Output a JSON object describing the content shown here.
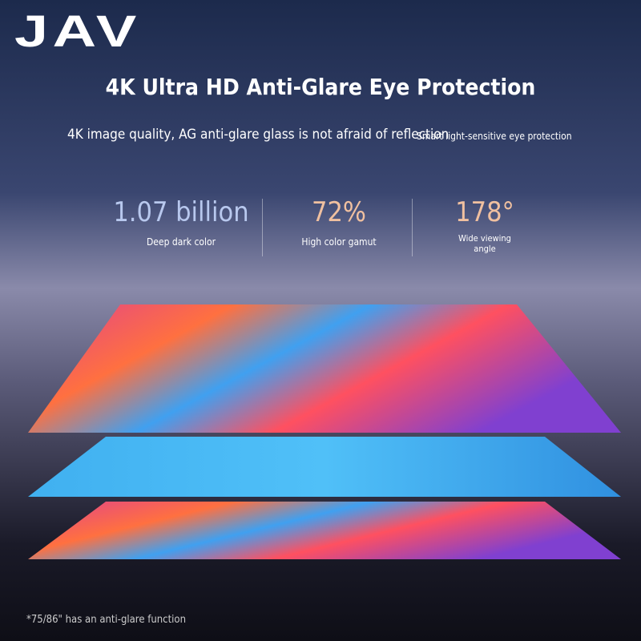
{
  "brand": "JAV",
  "title": "4K Ultra HD Anti-Glare Eye Protection",
  "subtitle": {
    "left": "4K image quality, AG anti-glare glass is not afraid of reflection",
    "right": "Smart light-sensitive eye protection"
  },
  "stats": [
    {
      "value": "1.07 billion",
      "label": "Deep dark color"
    },
    {
      "value": "72%",
      "label": "High color gamut"
    },
    {
      "value": "178°",
      "label": "Wide viewing angle"
    }
  ],
  "footnote": "*75/86\" has an anti-glare function"
}
